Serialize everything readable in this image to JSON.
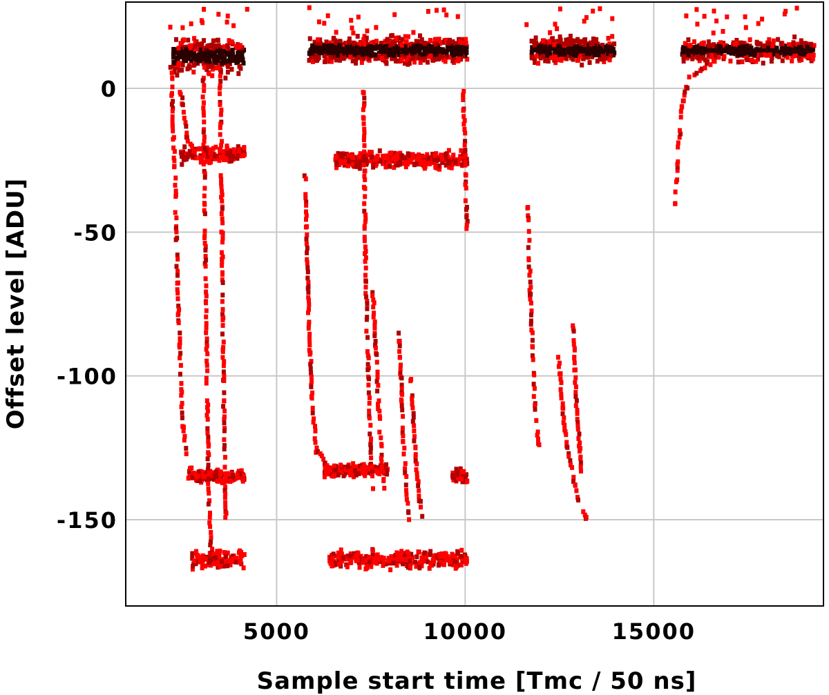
{
  "chart_data": {
    "type": "heatmap",
    "title": "",
    "xlabel": "Sample start time [Tmc / 50 ns]",
    "ylabel": "Offset level [ADU]",
    "xlim": [
      1000,
      19500
    ],
    "ylim": [
      -180,
      30
    ],
    "x_ticks": [
      5000,
      10000,
      15000
    ],
    "y_ticks": [
      0,
      -50,
      -100,
      -150
    ],
    "x_tick_labels": [
      "5000",
      "10000",
      "15000"
    ],
    "y_tick_labels": [
      "0",
      "-50",
      "-100",
      "-150"
    ],
    "grid": true,
    "colors": {
      "low": "#ff0000",
      "mid": "#b00000",
      "high": "#2a0000",
      "grid": "#c8c8c8"
    },
    "dense_bands": [
      {
        "x_start": 2200,
        "x_end": 4100,
        "y_center": 12,
        "y_halfwidth": 8,
        "density": 0.9
      },
      {
        "x_start": 5800,
        "x_end": 10000,
        "y_center": 14,
        "y_halfwidth": 6,
        "density": 1.0
      },
      {
        "x_start": 11700,
        "x_end": 13900,
        "y_center": 14,
        "y_halfwidth": 6,
        "density": 0.95
      },
      {
        "x_start": 15700,
        "x_end": 19200,
        "y_center": 14,
        "y_halfwidth": 5,
        "density": 0.8
      },
      {
        "x_start": 2400,
        "x_end": 4100,
        "y_center": -22,
        "y_halfwidth": 4,
        "density": 0.5
      },
      {
        "x_start": 6500,
        "x_end": 10000,
        "y_center": -24,
        "y_halfwidth": 4,
        "density": 0.55
      },
      {
        "x_start": 2600,
        "x_end": 4100,
        "y_center": -134,
        "y_halfwidth": 3,
        "density": 0.6
      },
      {
        "x_start": 6200,
        "x_end": 7900,
        "y_center": -132,
        "y_halfwidth": 3,
        "density": 0.6
      },
      {
        "x_start": 9600,
        "x_end": 10000,
        "y_center": -134,
        "y_halfwidth": 4,
        "density": 0.7
      },
      {
        "x_start": 2700,
        "x_end": 4100,
        "y_center": -163,
        "y_halfwidth": 4,
        "density": 0.45
      },
      {
        "x_start": 6300,
        "x_end": 10000,
        "y_center": -163,
        "y_halfwidth": 4,
        "density": 0.45
      }
    ],
    "tracks": [
      {
        "points": [
          [
            2150,
            8
          ],
          [
            2250,
            -30
          ],
          [
            2350,
            -80
          ],
          [
            2450,
            -115
          ],
          [
            2600,
            -130
          ],
          [
            2900,
            -134
          ]
        ]
      },
      {
        "points": [
          [
            2400,
            0
          ],
          [
            2600,
            -18
          ],
          [
            2900,
            -24
          ],
          [
            3300,
            -25
          ]
        ]
      },
      {
        "points": [
          [
            3000,
            5
          ],
          [
            3050,
            -50
          ],
          [
            3100,
            -100
          ],
          [
            3150,
            -140
          ],
          [
            3200,
            -160
          ]
        ]
      },
      {
        "points": [
          [
            3450,
            5
          ],
          [
            3500,
            -50
          ],
          [
            3550,
            -110
          ],
          [
            3600,
            -150
          ]
        ]
      },
      {
        "points": [
          [
            5700,
            -30
          ],
          [
            5800,
            -80
          ],
          [
            5900,
            -110
          ],
          [
            6000,
            -125
          ],
          [
            6400,
            -132
          ]
        ]
      },
      {
        "points": [
          [
            7250,
            0
          ],
          [
            7300,
            -60
          ],
          [
            7400,
            -110
          ],
          [
            7500,
            -140
          ]
        ]
      },
      {
        "points": [
          [
            7500,
            -70
          ],
          [
            7650,
            -110
          ],
          [
            7800,
            -140
          ]
        ]
      },
      {
        "points": [
          [
            8200,
            -85
          ],
          [
            8300,
            -120
          ],
          [
            8450,
            -150
          ]
        ]
      },
      {
        "points": [
          [
            8500,
            -100
          ],
          [
            8650,
            -130
          ],
          [
            8800,
            -150
          ]
        ]
      },
      {
        "points": [
          [
            9900,
            0
          ],
          [
            9950,
            -30
          ],
          [
            10000,
            -50
          ]
        ]
      },
      {
        "points": [
          [
            11600,
            -40
          ],
          [
            11700,
            -80
          ],
          [
            11800,
            -110
          ],
          [
            11900,
            -125
          ]
        ]
      },
      {
        "points": [
          [
            12400,
            -90
          ],
          [
            12600,
            -120
          ],
          [
            12900,
            -140
          ],
          [
            13200,
            -150
          ]
        ]
      },
      {
        "points": [
          [
            12800,
            -80
          ],
          [
            12900,
            -110
          ],
          [
            13050,
            -135
          ]
        ]
      },
      {
        "points": [
          [
            15500,
            -40
          ],
          [
            15600,
            -20
          ],
          [
            15700,
            -5
          ],
          [
            15900,
            5
          ],
          [
            16500,
            10
          ]
        ]
      }
    ]
  }
}
